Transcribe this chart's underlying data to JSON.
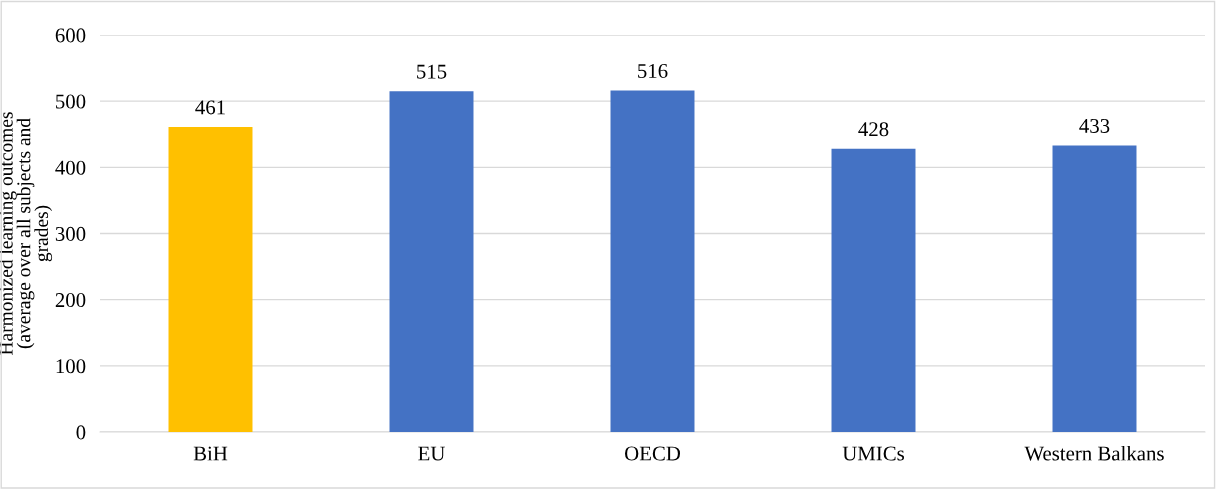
{
  "chart_data": {
    "type": "bar",
    "ylabel": "Harmonized learning outcomes\n(average over all subjects and\ngrades)",
    "categories": [
      "BiH",
      "EU",
      "OECD",
      "UMICs",
      "Western Balkans"
    ],
    "values": [
      461,
      515,
      516,
      428,
      433
    ],
    "colors": [
      "#ffc000",
      "#4472c4",
      "#4472c4",
      "#4472c4",
      "#4472c4"
    ],
    "ylim": [
      0,
      600
    ],
    "yticks": [
      0,
      100,
      200,
      300,
      400,
      500,
      600
    ],
    "grid": "y",
    "data_labels": true
  }
}
